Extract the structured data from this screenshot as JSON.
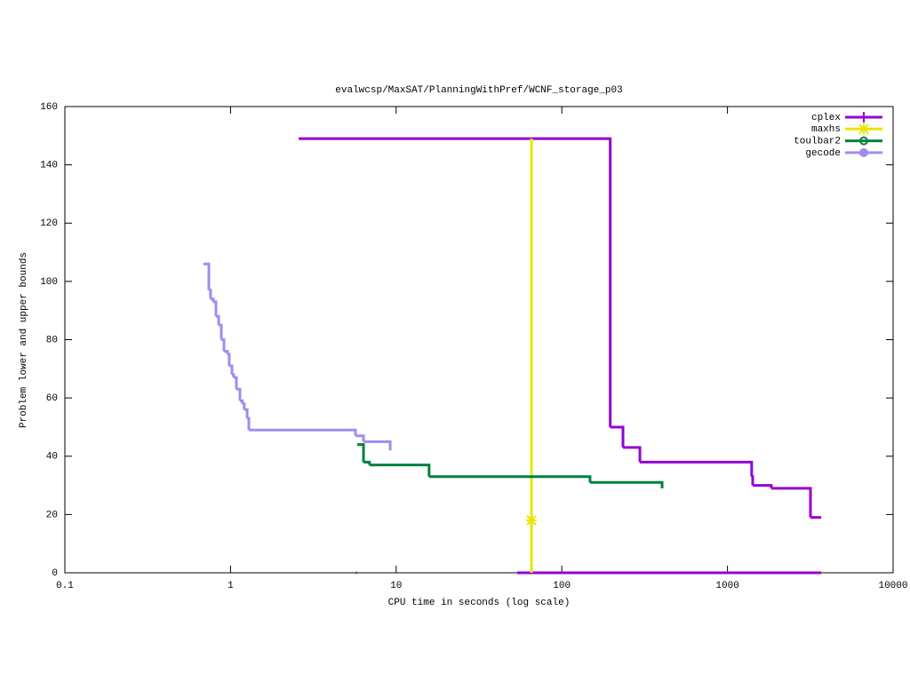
{
  "chart_data": {
    "type": "step",
    "title": "evalwcsp/MaxSAT/PlanningWithPref/WCNF_storage_p03",
    "xlabel": "CPU time in seconds (log scale)",
    "ylabel": "Problem lower and upper bounds",
    "xscale": "log",
    "xlim": [
      0.1,
      10000
    ],
    "xticks": [
      0.1,
      1,
      10,
      100,
      1000,
      10000
    ],
    "ylim": [
      0,
      160
    ],
    "yticks": [
      0,
      20,
      40,
      60,
      80,
      100,
      120,
      140,
      160
    ],
    "legend": "top-right",
    "series": [
      {
        "name": "cplex",
        "color": "#9400d3",
        "marker": "plus",
        "x": [
          2.58,
          196,
          234,
          296,
          1400,
          1420,
          1840,
          3170,
          3680,
          null,
          53.8,
          3680
        ],
        "y": [
          149,
          50,
          43,
          38,
          33,
          30,
          29,
          19,
          19,
          null,
          0,
          0
        ]
      },
      {
        "name": "maxhs",
        "color": "#e6e600",
        "marker": "star",
        "x": [
          65.6,
          65.6
        ],
        "y": [
          149,
          0
        ],
        "marker_x": [
          65.6
        ],
        "marker_y": [
          18
        ]
      },
      {
        "name": "toulbar2",
        "color": "#008040",
        "marker": "circle",
        "x": [
          5.82,
          6.35,
          6.9,
          15.8,
          148,
          403,
          null,
          5.7,
          5.8
        ],
        "y": [
          44,
          38,
          37,
          33,
          31,
          29,
          null,
          0,
          0
        ]
      },
      {
        "name": "gecode",
        "color": "#a08cf0",
        "marker": "dot",
        "x": [
          0.687,
          0.74,
          0.758,
          0.787,
          0.817,
          0.848,
          0.88,
          0.913,
          0.959,
          0.982,
          1.02,
          1.045,
          1.085,
          1.14,
          1.18,
          1.21,
          1.26,
          1.29,
          5.68,
          6.35,
          9.2
        ],
        "y": [
          106,
          97,
          94,
          93,
          88,
          85,
          80,
          76,
          75,
          71,
          68,
          67,
          63,
          59,
          58,
          56,
          53,
          49,
          47,
          45,
          42
        ]
      }
    ]
  }
}
